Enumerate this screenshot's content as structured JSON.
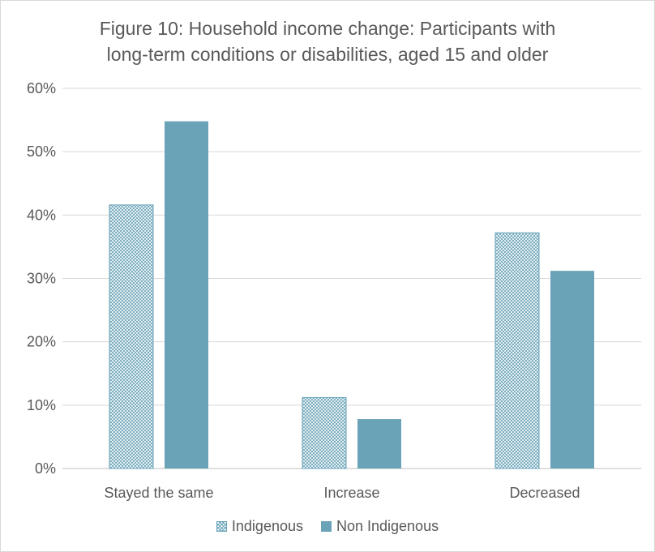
{
  "chart_data": {
    "type": "bar",
    "title_lines": [
      "Figure 10: Household income change: Participants with",
      "long-term conditions or disabilities, aged 15 and older"
    ],
    "categories": [
      "Stayed the same",
      "Increase",
      "Decreased"
    ],
    "series": [
      {
        "name": "Indigenous",
        "values": [
          41.6,
          11.2,
          37.2
        ],
        "color": "#6aa3b8",
        "pattern": "crosshatch"
      },
      {
        "name": "Non Indigenous",
        "values": [
          54.8,
          7.8,
          31.2
        ],
        "color": "#6aa3b8",
        "pattern": "solid"
      }
    ],
    "ylim": [
      0,
      60
    ],
    "yticks": [
      0,
      10,
      20,
      30,
      40,
      50,
      60
    ],
    "ytick_labels": [
      "0%",
      "10%",
      "20%",
      "30%",
      "40%",
      "50%",
      "60%"
    ],
    "grid": true,
    "legend_position": "bottom",
    "gridline_color": "#d9d9d9",
    "text_color": "#595959"
  }
}
